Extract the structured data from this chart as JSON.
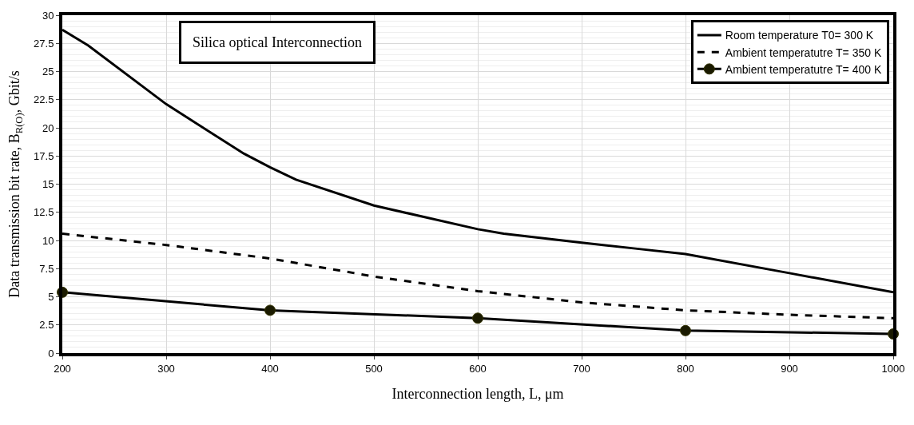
{
  "chart_data": {
    "type": "line",
    "title": "Silica optical Interconnection",
    "xlabel": "Interconnection length, L, μm",
    "ylabel": "Data transmission bit rate, B$_{R(O)}$, Gbit/s",
    "xlim": [
      200,
      1000
    ],
    "xticks": [
      200,
      300,
      400,
      500,
      600,
      700,
      800,
      900,
      1000
    ],
    "ylim": [
      0,
      30
    ],
    "yticks": [
      0,
      2.5,
      5,
      7.5,
      10,
      12.5,
      15,
      17.5,
      20,
      22.5,
      25,
      27.5,
      30
    ],
    "grid": true,
    "legend": "top right",
    "series": [
      {
        "name": "Room temperature T0= 300 K",
        "color": "#000000",
        "line_style": "solid",
        "marker": "none",
        "x": [
          200,
          225,
          300,
          375,
          400,
          425,
          500,
          600,
          625,
          700,
          750,
          800,
          900,
          1000
        ],
        "values": [
          28.7,
          27.3,
          22.1,
          17.7,
          16.5,
          15.4,
          13.1,
          11.0,
          10.6,
          9.8,
          9.3,
          8.8,
          7.1,
          5.4
        ]
      },
      {
        "name": "Ambient temperatutre T= 350 K",
        "color": "#000000",
        "line_style": "dashed",
        "marker": "none",
        "x": [
          200,
          300,
          400,
          500,
          600,
          700,
          800,
          900,
          1000
        ],
        "values": [
          10.6,
          9.6,
          8.4,
          6.8,
          5.5,
          4.5,
          3.8,
          3.4,
          3.1
        ]
      },
      {
        "name": "Ambient temperatutre T= 400 K",
        "color": "#000000",
        "line_style": "solid",
        "marker": "circle",
        "x": [
          200,
          400,
          600,
          800,
          1000
        ],
        "values": [
          5.4,
          3.8,
          3.1,
          2.0,
          1.7
        ]
      }
    ]
  }
}
